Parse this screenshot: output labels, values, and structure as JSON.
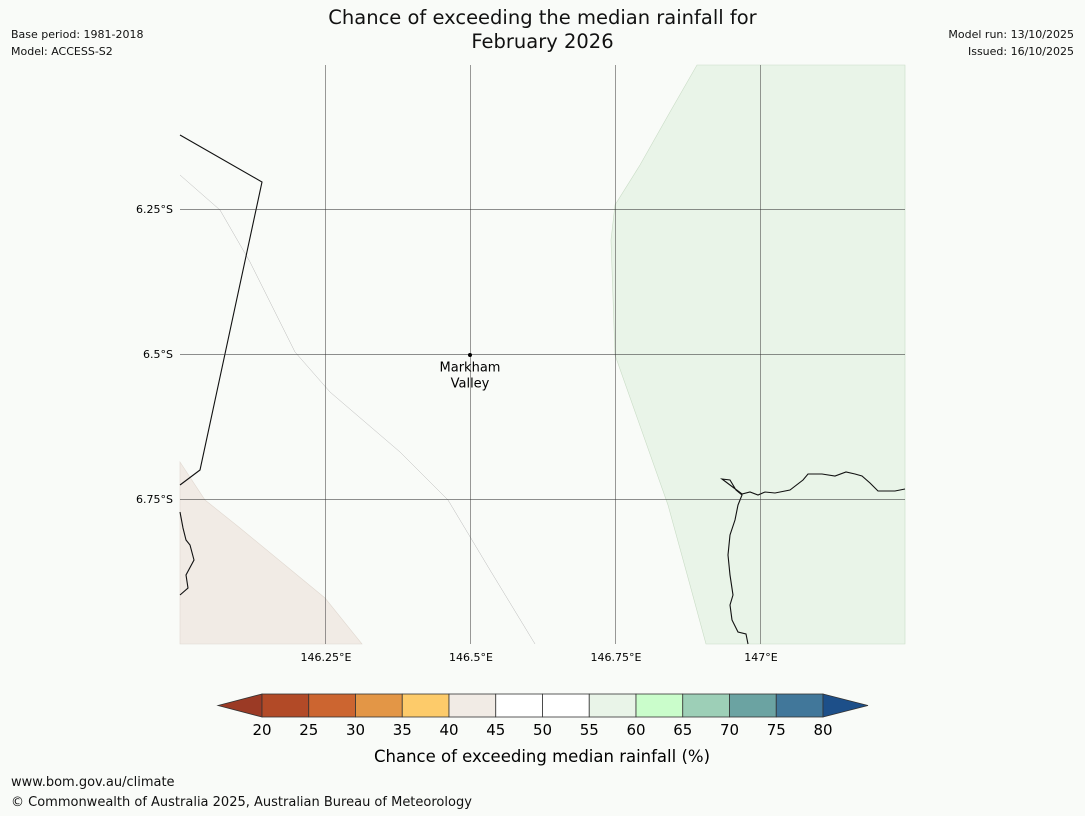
{
  "header": {
    "title_line1": "Chance of exceeding the median rainfall for",
    "title_line2": "February 2026",
    "base_period": "Base period: 1981-2018",
    "model": "Model: ACCESS-S2",
    "model_run": "Model run: 13/10/2025",
    "issued": "Issued: 16/10/2025"
  },
  "map": {
    "lat_labels": [
      "6.25°S",
      "6.5°S",
      "6.75°S"
    ],
    "lon_labels": [
      "146.25°E",
      "146.5°E",
      "146.75°E",
      "147°E"
    ],
    "place": {
      "name_line1": "Markham",
      "name_line2": "Valley"
    }
  },
  "legend": {
    "title": "Chance of exceeding median rainfall (%)",
    "ticks": [
      "20",
      "25",
      "30",
      "35",
      "40",
      "45",
      "50",
      "55",
      "60",
      "65",
      "70",
      "75",
      "80"
    ],
    "colors": {
      "under": "#9b3a25",
      "bins": [
        "#b24a27",
        "#cc6530",
        "#e39646",
        "#fdcb6a",
        "#f1ebe5",
        "#ffffff",
        "#ffffff",
        "#e9f4e8",
        "#cafdcb",
        "#9dcfb7",
        "#6ba3a2",
        "#41779a"
      ],
      "over": "#1d4f89"
    }
  },
  "footer": {
    "url": "www.bom.gov.au/climate",
    "copyright": "© Commonwealth of Australia 2025, Australian Bureau of Meteorology"
  }
}
